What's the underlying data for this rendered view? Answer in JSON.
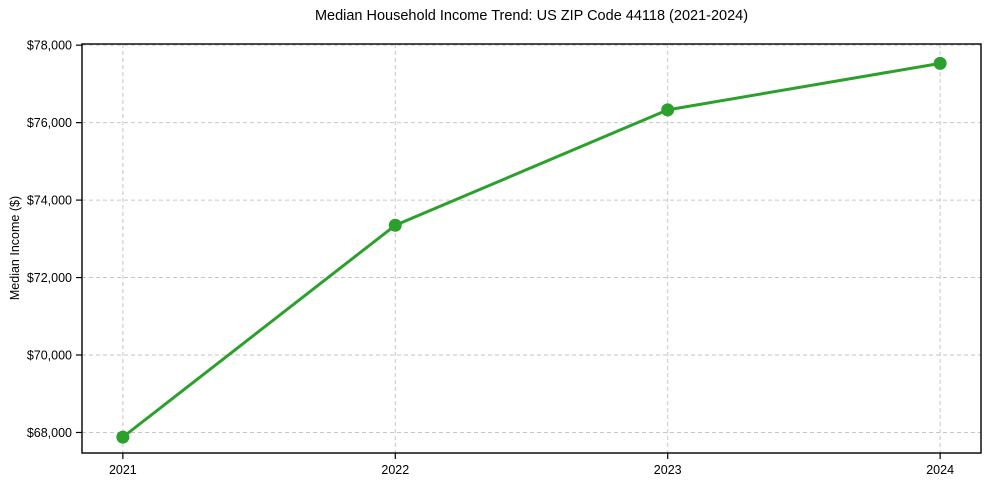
{
  "chart_data": {
    "type": "line",
    "title": "Median Household Income Trend: US ZIP Code 44118 (2021-2024)",
    "xlabel": "",
    "ylabel": "Median Income ($)",
    "x": [
      2021,
      2022,
      2023,
      2024
    ],
    "series": [
      {
        "name": "Median Household Income",
        "values": [
          67880,
          73350,
          76330,
          77530
        ],
        "color": "#2ca02c",
        "marker": "circle"
      }
    ],
    "xticks": [
      2021,
      2022,
      2023,
      2024
    ],
    "xtick_labels": [
      "2021",
      "2022",
      "2023",
      "2024"
    ],
    "yticks": [
      68000,
      70000,
      72000,
      74000,
      76000,
      78000
    ],
    "ytick_labels": [
      "$68,000",
      "$70,000",
      "$72,000",
      "$74,000",
      "$76,000",
      "$78,000"
    ],
    "xlim": [
      2020.85,
      2024.15
    ],
    "ylim": [
      67470,
      78030
    ],
    "grid": true,
    "grid_style": "dashed",
    "legend": "none",
    "colors": {
      "line": "#2ca02c",
      "grid": "#c6c6c6",
      "spine": "#000000",
      "text": "#000000",
      "background": "#ffffff"
    }
  }
}
